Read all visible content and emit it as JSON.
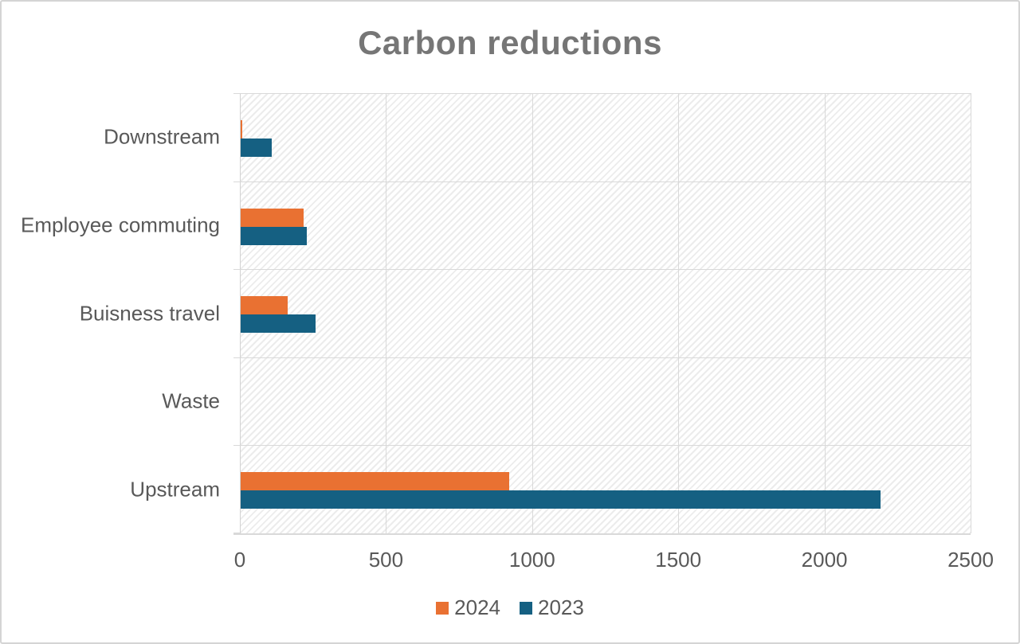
{
  "title": "Carbon reductions",
  "colors": {
    "series_2024": "#E97132",
    "series_2023": "#156082",
    "label_text": "#595959",
    "title_text": "#767676",
    "gridline": "#D9D9D9"
  },
  "legend": {
    "items": [
      {
        "label": "2024",
        "color": "#E97132"
      },
      {
        "label": "2023",
        "color": "#156082"
      }
    ]
  },
  "chart_data": {
    "type": "bar",
    "orientation": "horizontal",
    "title": "Carbon reductions",
    "categories": [
      "Downstream",
      "Employee commuting",
      "Buisness travel",
      "Waste",
      "Upstream"
    ],
    "series": [
      {
        "name": "2024",
        "color": "#E97132",
        "values": [
          5,
          215,
          160,
          0,
          918
        ]
      },
      {
        "name": "2023",
        "color": "#156082",
        "values": [
          105,
          225,
          255,
          0,
          2188
        ]
      }
    ],
    "xlim": [
      0,
      2500
    ],
    "x_ticks": [
      0,
      500,
      1000,
      1500,
      2000,
      2500
    ],
    "xlabel": "",
    "ylabel": "",
    "grid": true,
    "legend_position": "bottom",
    "plot_background": "diagonal-hatch"
  }
}
